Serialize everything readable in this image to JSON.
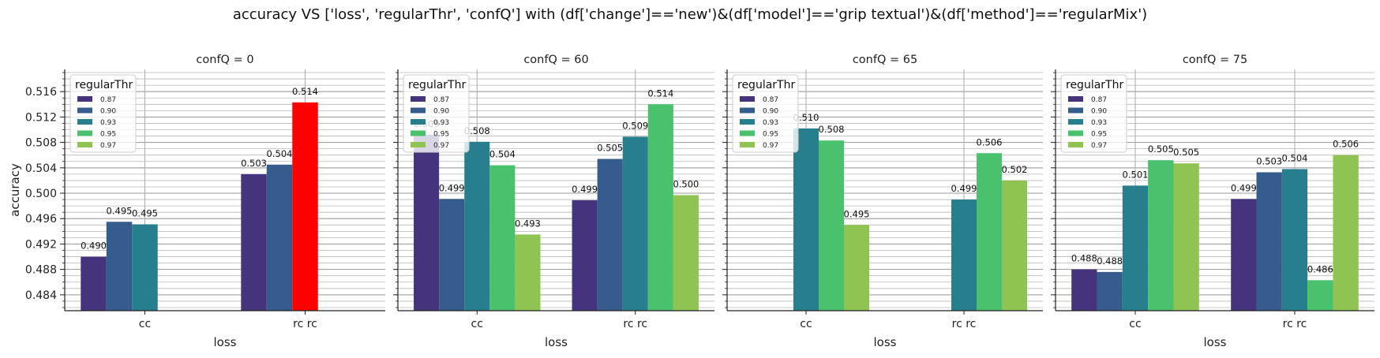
{
  "title": "accuracy VS ['loss', 'regularThr', 'confQ'] with (df['change']=='new')&(df['model']=='grip textual')&(df['method']=='regularMix')",
  "colors": {
    "0.87": "#46337e",
    "0.90": "#365c8d",
    "0.93": "#277f8e",
    "0.95": "#4ac16d",
    "0.97": "#8fc352",
    "highlight": "#ff0000"
  },
  "chart_data": [
    {
      "type": "bar",
      "title": "confQ = 0",
      "xlabel": "loss",
      "ylabel": "accuracy",
      "categories": [
        "cc",
        "rc rc"
      ],
      "legend_title": "regularThr",
      "legend_position": "top-left",
      "ylim": [
        0.4815,
        0.5195
      ],
      "yticks": [
        "0.484",
        "0.488",
        "0.492",
        "0.496",
        "0.500",
        "0.504",
        "0.508",
        "0.512",
        "0.516"
      ],
      "series": [
        {
          "name": "0.87",
          "values": [
            0.49,
            0.503
          ],
          "labels": [
            "0.490",
            "0.503"
          ]
        },
        {
          "name": "0.90",
          "values": [
            0.4955,
            0.5045
          ],
          "labels": [
            "0.495",
            "0.504"
          ]
        },
        {
          "name": "0.93",
          "values": [
            0.4951,
            null
          ],
          "labels": [
            "0.495",
            ""
          ]
        },
        {
          "name": "0.95",
          "values": [
            null,
            null
          ],
          "labels": [
            "",
            ""
          ]
        },
        {
          "name": "0.97",
          "values": [
            null,
            null
          ],
          "labels": [
            "",
            ""
          ]
        }
      ],
      "extra_bars": [
        {
          "category": 1,
          "slot": 2,
          "value": 0.5143,
          "label": "0.514",
          "color_key": "highlight"
        }
      ]
    },
    {
      "type": "bar",
      "title": "confQ = 60",
      "xlabel": "loss",
      "ylabel": "",
      "categories": [
        "cc",
        "rc rc"
      ],
      "legend_title": "regularThr",
      "legend_position": "top-left",
      "ylim": [
        0.4815,
        0.5195
      ],
      "series": [
        {
          "name": "0.87",
          "values": [
            0.5092,
            0.4989
          ],
          "labels": [
            "0.509",
            "0.499"
          ]
        },
        {
          "name": "0.90",
          "values": [
            0.4991,
            0.5054
          ],
          "labels": [
            "0.499",
            "0.505"
          ]
        },
        {
          "name": "0.93",
          "values": [
            0.5081,
            0.5089
          ],
          "labels": [
            "0.508",
            "0.509"
          ]
        },
        {
          "name": "0.95",
          "values": [
            0.5044,
            0.514
          ],
          "labels": [
            "0.504",
            "0.514"
          ]
        },
        {
          "name": "0.97",
          "values": [
            0.4935,
            0.4997
          ],
          "labels": [
            "0.493",
            "0.500"
          ]
        }
      ]
    },
    {
      "type": "bar",
      "title": "confQ = 65",
      "xlabel": "loss",
      "ylabel": "",
      "categories": [
        "cc",
        "rc rc"
      ],
      "legend_title": "regularThr",
      "legend_position": "top-left",
      "ylim": [
        0.4815,
        0.5195
      ],
      "series": [
        {
          "name": "0.87",
          "values": [
            null,
            null
          ],
          "labels": [
            "",
            ""
          ]
        },
        {
          "name": "0.90",
          "values": [
            null,
            null
          ],
          "labels": [
            "",
            ""
          ]
        },
        {
          "name": "0.93",
          "values": [
            0.5102,
            0.499
          ],
          "labels": [
            "0.510",
            "0.499"
          ]
        },
        {
          "name": "0.95",
          "values": [
            0.5083,
            0.5063
          ],
          "labels": [
            "0.508",
            "0.506"
          ]
        },
        {
          "name": "0.97",
          "values": [
            0.495,
            0.502
          ],
          "labels": [
            "0.495",
            "0.502"
          ]
        }
      ]
    },
    {
      "type": "bar",
      "title": "confQ = 75",
      "xlabel": "loss",
      "ylabel": "",
      "categories": [
        "cc",
        "rc rc"
      ],
      "legend_title": "regularThr",
      "legend_position": "top-left",
      "ylim": [
        0.4815,
        0.5195
      ],
      "series": [
        {
          "name": "0.87",
          "values": [
            0.488,
            0.4991
          ],
          "labels": [
            "0.488",
            "0.499"
          ]
        },
        {
          "name": "0.90",
          "values": [
            0.4876,
            0.5033
          ],
          "labels": [
            "0.488",
            "0.503"
          ]
        },
        {
          "name": "0.93",
          "values": [
            0.5012,
            0.5038
          ],
          "labels": [
            "0.501",
            "0.504"
          ]
        },
        {
          "name": "0.95",
          "values": [
            0.5052,
            0.4863
          ],
          "labels": [
            "0.505",
            "0.486"
          ]
        },
        {
          "name": "0.97",
          "values": [
            0.5047,
            0.506
          ],
          "labels": [
            "0.505",
            "0.506"
          ]
        }
      ]
    }
  ]
}
